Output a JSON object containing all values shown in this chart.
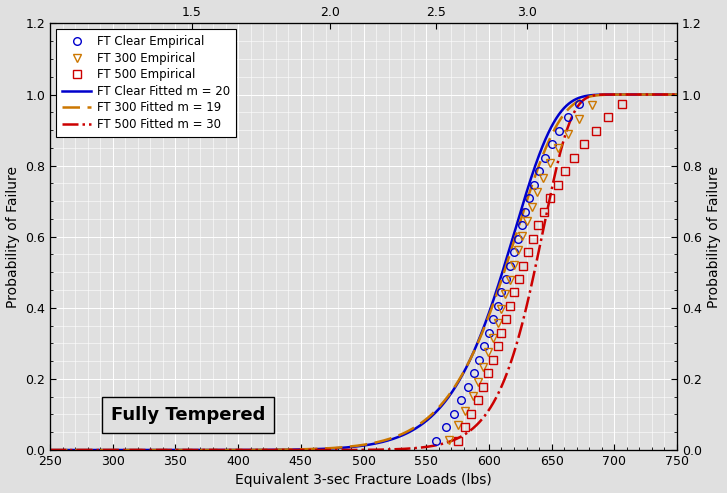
{
  "title_box": "Fully Tempered",
  "xlabel": "Equivalent 3-sec Fracture Loads (lbs)",
  "ylabel_left": "Probability of Failure",
  "ylabel_right": "Probability of Failure",
  "xlim": [
    250,
    750
  ],
  "ylim": [
    0.0,
    1.2
  ],
  "xticks_bottom": [
    250,
    300,
    350,
    400,
    450,
    500,
    550,
    600,
    650,
    700,
    750
  ],
  "yticks": [
    0.0,
    0.2,
    0.4,
    0.6,
    0.8,
    1.0,
    1.2
  ],
  "color_clear": "#0000cc",
  "color_300": "#cc7700",
  "color_500": "#cc0000",
  "background_color": "#e0e0e0",
  "grid_color": "#ffffff",
  "weibull_clear": {
    "m": 20,
    "eta": 622,
    "t0": 0
  },
  "weibull_300": {
    "m": 19,
    "eta": 624,
    "t0": 0
  },
  "weibull_500": {
    "m": 30,
    "eta": 644,
    "t0": 0
  },
  "top_tick_positions": [
    363,
    473,
    558,
    630,
    693
  ],
  "top_tick_labels": [
    "1.5",
    "2.0",
    "2.5",
    "3.0",
    ""
  ],
  "empirical_clear_x": [
    558,
    566,
    572,
    578,
    583,
    588,
    592,
    596,
    600,
    603,
    607,
    610,
    614,
    617,
    620,
    623,
    626,
    629,
    632,
    636,
    640,
    645,
    650,
    656,
    663,
    672
  ],
  "empirical_300_x": [
    568,
    575,
    581,
    587,
    591,
    595,
    599,
    603,
    607,
    610,
    613,
    617,
    620,
    623,
    626,
    630,
    634,
    638,
    643,
    649,
    655,
    663,
    672,
    682
  ],
  "empirical_500_x": [
    575,
    581,
    586,
    591,
    595,
    599,
    603,
    607,
    610,
    614,
    617,
    620,
    624,
    627,
    631,
    635,
    639,
    644,
    649,
    655,
    661,
    668,
    676,
    685,
    695,
    706
  ]
}
